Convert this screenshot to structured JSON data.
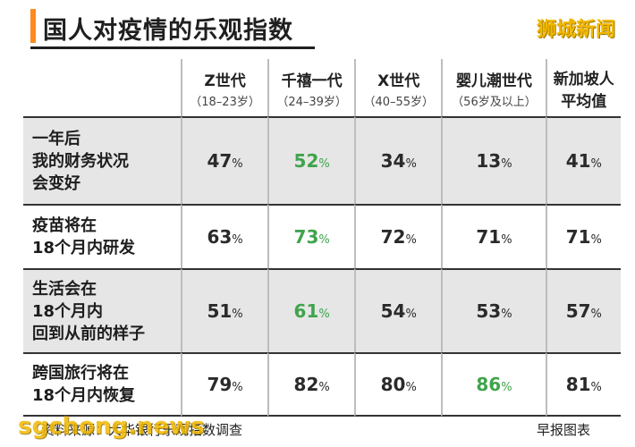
{
  "title": "国人对疫情的乐观指数",
  "watermark_top": "狮城新闻",
  "watermark_bottom": "sgchong.news",
  "source_note": "资料来源：大华银行乐观指数调查",
  "credit": "早报图表",
  "colors": {
    "accent": "#ff8a1f",
    "highlight": "#3fa44b",
    "shade": "#e6e6e6",
    "watermark": "#f2b800"
  },
  "chart_data": {
    "type": "table",
    "columns": [
      {
        "name": "Z世代",
        "sub": "（18–23岁）"
      },
      {
        "name": "千禧一代",
        "sub": "（24–39岁）"
      },
      {
        "name": "X世代",
        "sub": "（40–55岁）"
      },
      {
        "name": "婴儿潮世代",
        "sub": "（56岁及以上）"
      },
      {
        "name": "新加坡人",
        "name2": "平均值",
        "sub": ""
      }
    ],
    "rows": [
      {
        "label_lines": [
          "一年后",
          "我的财务状况",
          "会变好"
        ],
        "values": [
          47,
          52,
          34,
          13,
          41
        ],
        "highlight_index": 1
      },
      {
        "label_lines": [
          "疫苗将在",
          "18个月内研发"
        ],
        "values": [
          63,
          73,
          72,
          71,
          71
        ],
        "highlight_index": 1
      },
      {
        "label_lines": [
          "生活会在",
          "18个月内",
          "回到从前的样子"
        ],
        "values": [
          51,
          61,
          54,
          53,
          57
        ],
        "highlight_index": 1
      },
      {
        "label_lines": [
          "跨国旅行将在",
          "18个月内恢复"
        ],
        "values": [
          79,
          82,
          80,
          86,
          81
        ],
        "highlight_index": 3
      }
    ],
    "unit": "%"
  }
}
